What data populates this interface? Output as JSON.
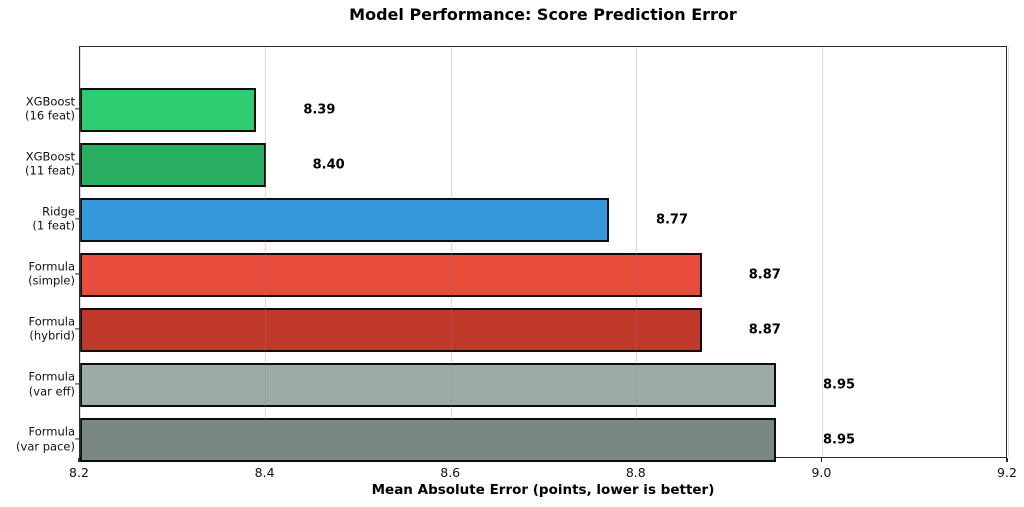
{
  "chart_data": {
    "type": "bar",
    "orientation": "horizontal",
    "title": "Model Performance: Score Prediction Error",
    "xlabel": "Mean Absolute Error (points, lower is better)",
    "ylabel": "",
    "categories": [
      "XGBoost\n(16 feat)",
      "XGBoost\n(11 feat)",
      "Ridge\n(1 feat)",
      "Formula\n(simple)",
      "Formula\n(hybrid)",
      "Formula\n(var eff)",
      "Formula\n(var pace)"
    ],
    "values": [
      8.39,
      8.4,
      8.77,
      8.87,
      8.87,
      8.95,
      8.95
    ],
    "value_labels": [
      "8.39",
      "8.40",
      "8.77",
      "8.87",
      "8.87",
      "8.95",
      "8.95"
    ],
    "bar_colors": [
      "#2ecc71",
      "#27ae60",
      "#3498db",
      "#e74c3c",
      "#c0392b",
      "#9aaba8",
      "#7a8885"
    ],
    "bar_edge_color": "#0d0d0d",
    "xlim": [
      8.2,
      9.2
    ],
    "x_ticks": [
      8.2,
      8.4,
      8.6,
      8.8,
      9.0,
      9.2
    ],
    "x_tick_labels": [
      "8.2",
      "8.4",
      "8.6",
      "8.8",
      "9.0",
      "9.2"
    ],
    "grid": "vertical",
    "grid_color": "#d9d9d9",
    "legend": "none",
    "background_color": "#ffffff"
  }
}
